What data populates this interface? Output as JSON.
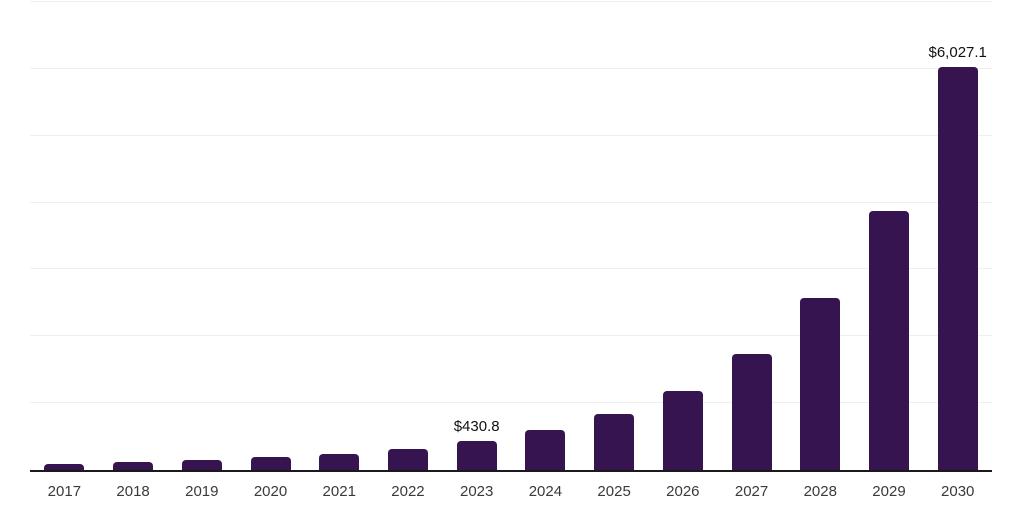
{
  "chart_data": {
    "type": "bar",
    "title": "",
    "xlabel": "",
    "ylabel": "",
    "categories": [
      "2017",
      "2018",
      "2019",
      "2020",
      "2021",
      "2022",
      "2023",
      "2024",
      "2025",
      "2026",
      "2027",
      "2028",
      "2029",
      "2030"
    ],
    "values": [
      95,
      125,
      155,
      190,
      235,
      310,
      430.8,
      600,
      835,
      1180,
      1740,
      2570,
      3875,
      6027.1
    ],
    "labels": [
      "",
      "",
      "",
      "",
      "",
      "",
      "$430.8",
      "",
      "",
      "",
      "",
      "",
      "",
      "$6,027.1"
    ],
    "ylim": [
      0,
      7000
    ],
    "gridline_interval": 1000,
    "grid": true,
    "legend": false,
    "colors": {
      "bar": "#361450",
      "axis_line": "#1a1a1a",
      "gridline": "#efefef",
      "value_label": "#111111",
      "tick_label": "#3a3a3a",
      "background": "#ffffff"
    }
  }
}
